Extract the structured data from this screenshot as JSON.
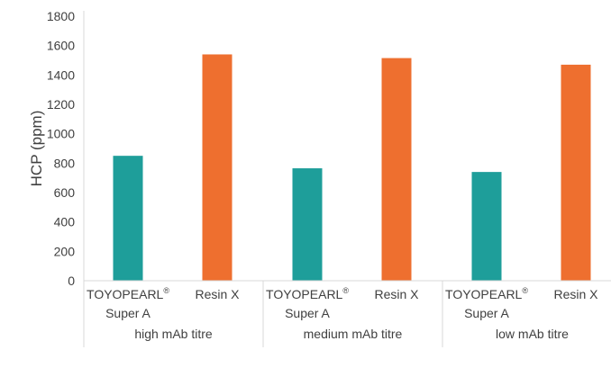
{
  "chart_data": {
    "type": "bar",
    "ylabel": "HCP (ppm)",
    "ylim": [
      0,
      1800
    ],
    "yticks": [
      0,
      200,
      400,
      600,
      800,
      1000,
      1200,
      1400,
      1600,
      1800
    ],
    "grid": false,
    "groups": [
      {
        "label": "high mAb titre",
        "bars": [
          {
            "line1": "TOYOPEARL",
            "sup": "®",
            "line2": "Super A",
            "value": 850,
            "color": "#1e9e9a"
          },
          {
            "line1": "Resin X",
            "sup": "",
            "line2": "",
            "value": 1540,
            "color": "#ee6f2f"
          }
        ]
      },
      {
        "label": "medium mAb titre",
        "bars": [
          {
            "line1": "TOYOPEARL",
            "sup": "®",
            "line2": "Super A",
            "value": 765,
            "color": "#1e9e9a"
          },
          {
            "line1": "Resin X",
            "sup": "",
            "line2": "",
            "value": 1515,
            "color": "#ee6f2f"
          }
        ]
      },
      {
        "label": "low mAb titre",
        "bars": [
          {
            "line1": "TOYOPEARL",
            "sup": "®",
            "line2": "Super A",
            "value": 740,
            "color": "#1e9e9a"
          },
          {
            "line1": "Resin X",
            "sup": "",
            "line2": "",
            "value": 1470,
            "color": "#ee6f2f"
          }
        ]
      }
    ]
  }
}
